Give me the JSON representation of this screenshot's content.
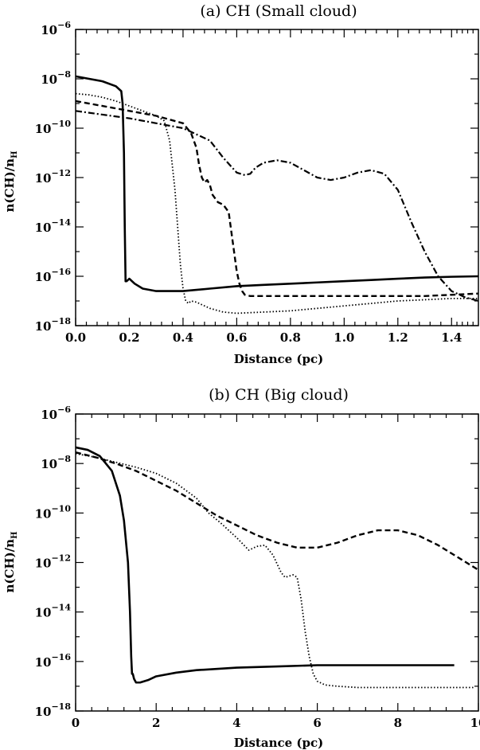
{
  "chart_data": [
    {
      "type": "line",
      "title": "(a) CH (Small cloud)",
      "xlabel": "Distance (pc)",
      "ylabel": "n(CH)/n_H",
      "ylabel_main": "n(CH)/n",
      "ylabel_sub": "H",
      "xlim": [
        0.0,
        1.5
      ],
      "ylim_log10": [
        -18,
        -6
      ],
      "yscale": "log",
      "xticks": [
        "0.0",
        "0.2",
        "0.4",
        "0.6",
        "0.8",
        "1.0",
        "1.2",
        "1.4"
      ],
      "xtick_values": [
        0.0,
        0.2,
        0.4,
        0.6,
        0.8,
        1.0,
        1.2,
        1.4
      ],
      "yticks": [
        {
          "base": "10",
          "exp": "−6",
          "log": -6
        },
        {
          "base": "10",
          "exp": "−8",
          "log": -8
        },
        {
          "base": "10",
          "exp": "−10",
          "log": -10
        },
        {
          "base": "10",
          "exp": "−12",
          "log": -12
        },
        {
          "base": "10",
          "exp": "−14",
          "log": -14
        },
        {
          "base": "10",
          "exp": "−16",
          "log": -16
        },
        {
          "base": "10",
          "exp": "−18",
          "log": -18
        }
      ],
      "series": [
        {
          "style": "solid",
          "x_pc": [
            0.0,
            0.05,
            0.1,
            0.15,
            0.17,
            0.175,
            0.18,
            0.183,
            0.186,
            0.19,
            0.2,
            0.22,
            0.25,
            0.3,
            0.35,
            0.4,
            0.5,
            0.6,
            0.7,
            0.8,
            0.9,
            1.0,
            1.1,
            1.2,
            1.3,
            1.4,
            1.5
          ],
          "log_y": [
            -7.9,
            -8.0,
            -8.1,
            -8.3,
            -8.5,
            -9.0,
            -11.0,
            -14.0,
            -16.2,
            -16.2,
            -16.1,
            -16.3,
            -16.5,
            -16.6,
            -16.6,
            -16.6,
            -16.5,
            -16.4,
            -16.35,
            -16.3,
            -16.25,
            -16.2,
            -16.15,
            -16.1,
            -16.05,
            -16.02,
            -16.0
          ]
        },
        {
          "style": "dotted",
          "x_pc": [
            0.0,
            0.05,
            0.1,
            0.15,
            0.2,
            0.25,
            0.3,
            0.33,
            0.35,
            0.37,
            0.38,
            0.39,
            0.4,
            0.41,
            0.42,
            0.43,
            0.45,
            0.5,
            0.55,
            0.6,
            0.7,
            0.8,
            0.9,
            1.0,
            1.1,
            1.2,
            1.3,
            1.4,
            1.5
          ],
          "log_y": [
            -8.6,
            -8.65,
            -8.75,
            -8.9,
            -9.1,
            -9.3,
            -9.5,
            -9.7,
            -10.5,
            -12.5,
            -14.0,
            -15.5,
            -16.5,
            -17.0,
            -17.1,
            -17.0,
            -17.05,
            -17.3,
            -17.45,
            -17.5,
            -17.45,
            -17.4,
            -17.3,
            -17.2,
            -17.1,
            -17.0,
            -16.95,
            -16.9,
            -16.9
          ]
        },
        {
          "style": "dashed",
          "x_pc": [
            0.0,
            0.1,
            0.2,
            0.3,
            0.4,
            0.43,
            0.45,
            0.46,
            0.47,
            0.48,
            0.49,
            0.5,
            0.51,
            0.53,
            0.55,
            0.57,
            0.58,
            0.59,
            0.6,
            0.61,
            0.62,
            0.63,
            0.65,
            0.7,
            0.8,
            0.9,
            1.0,
            1.1,
            1.2,
            1.3,
            1.4,
            1.5
          ],
          "log_y": [
            -8.9,
            -9.1,
            -9.3,
            -9.5,
            -9.8,
            -10.2,
            -10.8,
            -11.5,
            -12.0,
            -12.2,
            -12.1,
            -12.3,
            -12.7,
            -13.0,
            -13.1,
            -13.4,
            -14.2,
            -15.0,
            -15.8,
            -16.3,
            -16.6,
            -16.75,
            -16.8,
            -16.8,
            -16.8,
            -16.8,
            -16.8,
            -16.8,
            -16.8,
            -16.8,
            -16.75,
            -16.7
          ]
        },
        {
          "style": "dashdot",
          "x_pc": [
            0.0,
            0.1,
            0.2,
            0.3,
            0.4,
            0.5,
            0.55,
            0.6,
            0.63,
            0.65,
            0.67,
            0.7,
            0.75,
            0.8,
            0.85,
            0.9,
            0.95,
            1.0,
            1.05,
            1.1,
            1.15,
            1.2,
            1.25,
            1.3,
            1.35,
            1.4,
            1.45,
            1.5
          ],
          "log_y": [
            -9.3,
            -9.45,
            -9.6,
            -9.8,
            -10.0,
            -10.5,
            -11.2,
            -11.8,
            -11.9,
            -11.85,
            -11.6,
            -11.4,
            -11.3,
            -11.4,
            -11.7,
            -12.0,
            -12.1,
            -12.0,
            -11.8,
            -11.7,
            -11.85,
            -12.5,
            -13.8,
            -15.0,
            -16.0,
            -16.6,
            -16.85,
            -17.0
          ]
        }
      ]
    },
    {
      "type": "line",
      "title": "(b) CH (Big cloud)",
      "xlabel": "Distance (pc)",
      "ylabel": "n(CH)/n_H",
      "ylabel_main": "n(CH)/n",
      "ylabel_sub": "H",
      "xlim": [
        0,
        10
      ],
      "ylim_log10": [
        -18,
        -6
      ],
      "yscale": "log",
      "xticks": [
        "0",
        "2",
        "4",
        "6",
        "8",
        "10"
      ],
      "xtick_values": [
        0,
        2,
        4,
        6,
        8,
        10
      ],
      "yticks": [
        {
          "base": "10",
          "exp": "−6",
          "log": -6
        },
        {
          "base": "10",
          "exp": "−8",
          "log": -8
        },
        {
          "base": "10",
          "exp": "−10",
          "log": -10
        },
        {
          "base": "10",
          "exp": "−12",
          "log": -12
        },
        {
          "base": "10",
          "exp": "−14",
          "log": -14
        },
        {
          "base": "10",
          "exp": "−16",
          "log": -16
        },
        {
          "base": "10",
          "exp": "−18",
          "log": -18
        }
      ],
      "series": [
        {
          "style": "solid",
          "x_pc": [
            0.0,
            0.3,
            0.6,
            0.9,
            1.1,
            1.2,
            1.3,
            1.35,
            1.38,
            1.4,
            1.42,
            1.45,
            1.5,
            1.6,
            1.8,
            2.0,
            2.5,
            3.0,
            4.0,
            5.0,
            6.0,
            7.0,
            8.0,
            9.0,
            9.4
          ],
          "log_y": [
            -7.35,
            -7.45,
            -7.7,
            -8.3,
            -9.3,
            -10.3,
            -12.0,
            -14.0,
            -15.8,
            -16.5,
            -16.5,
            -16.7,
            -16.85,
            -16.85,
            -16.75,
            -16.6,
            -16.45,
            -16.35,
            -16.25,
            -16.2,
            -16.15,
            -16.15,
            -16.15,
            -16.15,
            -16.15
          ]
        },
        {
          "style": "dotted",
          "x_pc": [
            0.0,
            0.5,
            1.0,
            1.5,
            2.0,
            2.5,
            3.0,
            3.3,
            3.6,
            4.0,
            4.3,
            4.5,
            4.7,
            4.9,
            5.1,
            5.2,
            5.4,
            5.5,
            5.6,
            5.7,
            5.8,
            5.9,
            6.0,
            6.2,
            6.5,
            7.0,
            8.0,
            9.0,
            9.9
          ],
          "log_y": [
            -7.6,
            -7.75,
            -7.95,
            -8.15,
            -8.4,
            -8.8,
            -9.4,
            -10.0,
            -10.4,
            -11.0,
            -11.5,
            -11.35,
            -11.3,
            -11.7,
            -12.4,
            -12.6,
            -12.5,
            -12.6,
            -13.5,
            -14.8,
            -15.8,
            -16.5,
            -16.8,
            -16.95,
            -17.0,
            -17.05,
            -17.05,
            -17.05,
            -17.05
          ]
        },
        {
          "style": "dashed",
          "x_pc": [
            0.0,
            0.5,
            1.0,
            1.5,
            2.0,
            2.5,
            3.0,
            3.5,
            4.0,
            4.5,
            5.0,
            5.5,
            6.0,
            6.5,
            7.0,
            7.5,
            8.0,
            8.5,
            9.0,
            9.5,
            10.0
          ],
          "log_y": [
            -7.55,
            -7.75,
            -8.0,
            -8.3,
            -8.7,
            -9.1,
            -9.6,
            -10.1,
            -10.5,
            -10.9,
            -11.2,
            -11.4,
            -11.4,
            -11.2,
            -10.9,
            -10.7,
            -10.7,
            -10.9,
            -11.3,
            -11.8,
            -12.3
          ]
        }
      ]
    }
  ]
}
